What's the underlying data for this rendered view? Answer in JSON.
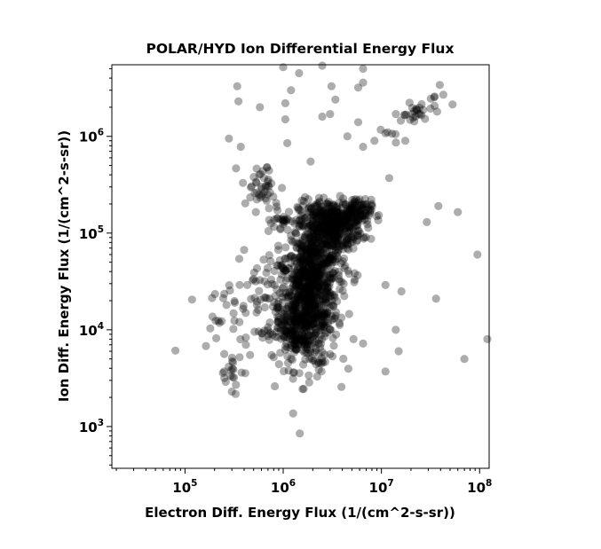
{
  "chart_data": {
    "type": "scatter",
    "title": "POLAR/HYD  Ion Differential Energy Flux",
    "xlabel": "Electron Diff. Energy Flux (1/(cm^2-s-sr))",
    "ylabel": "Ion Diff. Energy Flux (1/(cm^2-s-sr))",
    "xscale": "log",
    "yscale": "log",
    "xlim": [
      18000,
      125000000
    ],
    "ylim": [
      370,
      5500000
    ],
    "grid": false,
    "legend": "none",
    "marker_color": "#000000",
    "marker_opacity": 0.32,
    "x_ticks": [
      {
        "base": "10",
        "exp": "5",
        "value": 100000
      },
      {
        "base": "10",
        "exp": "6",
        "value": 1000000
      },
      {
        "base": "10",
        "exp": "7",
        "value": 10000000
      },
      {
        "base": "10",
        "exp": "8",
        "value": 100000000
      }
    ],
    "y_ticks": [
      {
        "base": "10",
        "exp": "3",
        "value": 1000
      },
      {
        "base": "10",
        "exp": "4",
        "value": 10000
      },
      {
        "base": "10",
        "exp": "5",
        "value": 100000
      },
      {
        "base": "10",
        "exp": "6",
        "value": 1000000
      }
    ],
    "clusters": [
      {
        "x": 1800000,
        "y": 18000,
        "sx": 0.15,
        "sy": 0.33,
        "n": 650
      },
      {
        "x": 3000000,
        "y": 120000,
        "sx": 0.16,
        "sy": 0.13,
        "n": 460
      },
      {
        "x": 2200000,
        "y": 45000,
        "sx": 0.14,
        "sy": 0.22,
        "n": 260
      },
      {
        "x": 1300000,
        "y": 12000,
        "sx": 0.1,
        "sy": 0.12,
        "n": 110
      },
      {
        "x": 5200000,
        "y": 160000,
        "sx": 0.09,
        "sy": 0.07,
        "n": 90
      },
      {
        "x": 600000,
        "y": 300000,
        "sx": 0.1,
        "sy": 0.12,
        "n": 42
      },
      {
        "x": 950000,
        "y": 140000,
        "sx": 0.05,
        "sy": 0.06,
        "n": 22
      },
      {
        "x": 500000,
        "y": 15000,
        "sx": 0.24,
        "sy": 0.26,
        "n": 75
      },
      {
        "x": 280000,
        "y": 4000,
        "sx": 0.06,
        "sy": 0.14,
        "n": 14
      },
      {
        "x": 900000,
        "y": 40000,
        "sx": 0.2,
        "sy": 0.25,
        "n": 30
      }
    ],
    "band": {
      "x_from": 12000000,
      "y_from": 1200000,
      "x_to": 45000000,
      "y_to": 2600000,
      "n": 38,
      "spread": 0.06
    },
    "points": [
      {
        "x": 8000000,
        "y": 200000
      },
      {
        "x": 12000000,
        "y": 370000
      },
      {
        "x": 1900000,
        "y": 550000
      },
      {
        "x": 280000,
        "y": 950000
      },
      {
        "x": 370000,
        "y": 780000
      },
      {
        "x": 340000,
        "y": 3300000
      },
      {
        "x": 350000,
        "y": 2300000
      },
      {
        "x": 580000,
        "y": 2000000
      },
      {
        "x": 1050000,
        "y": 2200000
      },
      {
        "x": 1050000,
        "y": 1500000
      },
      {
        "x": 1100000,
        "y": 850000
      },
      {
        "x": 1200000,
        "y": 3000000
      },
      {
        "x": 1450000,
        "y": 4500000
      },
      {
        "x": 1000000,
        "y": 5200000
      },
      {
        "x": 2500000,
        "y": 5500000
      },
      {
        "x": 2500000,
        "y": 1600000
      },
      {
        "x": 3000000,
        "y": 1700000
      },
      {
        "x": 3400000,
        "y": 2400000
      },
      {
        "x": 3100000,
        "y": 3300000
      },
      {
        "x": 5800000,
        "y": 3200000
      },
      {
        "x": 6500000,
        "y": 3600000
      },
      {
        "x": 6500000,
        "y": 5000000
      },
      {
        "x": 5800000,
        "y": 1400000
      },
      {
        "x": 4500000,
        "y": 1000000
      },
      {
        "x": 6500000,
        "y": 780000
      },
      {
        "x": 8500000,
        "y": 900000
      },
      {
        "x": 17500000,
        "y": 900000
      },
      {
        "x": 29000000,
        "y": 130000
      },
      {
        "x": 38000000,
        "y": 190000
      },
      {
        "x": 60000000,
        "y": 165000
      },
      {
        "x": 95000000,
        "y": 60000
      },
      {
        "x": 120000000,
        "y": 8000
      },
      {
        "x": 70000000,
        "y": 5000
      },
      {
        "x": 36000000,
        "y": 21000
      },
      {
        "x": 16000000,
        "y": 25000
      },
      {
        "x": 11000000,
        "y": 29000
      },
      {
        "x": 11000000,
        "y": 3700
      },
      {
        "x": 15000000,
        "y": 6000
      },
      {
        "x": 6500000,
        "y": 7200
      },
      {
        "x": 5200000,
        "y": 8000
      },
      {
        "x": 2500000,
        "y": 4700
      },
      {
        "x": 14000000,
        "y": 10000
      },
      {
        "x": 260000,
        "y": 2900
      },
      {
        "x": 300000,
        "y": 2300
      },
      {
        "x": 330000,
        "y": 2700
      },
      {
        "x": 360000,
        "y": 5200
      },
      {
        "x": 460000,
        "y": 5500
      },
      {
        "x": 800000,
        "y": 5200
      },
      {
        "x": 1200000,
        "y": 7000
      },
      {
        "x": 250000,
        "y": 3700
      }
    ]
  }
}
